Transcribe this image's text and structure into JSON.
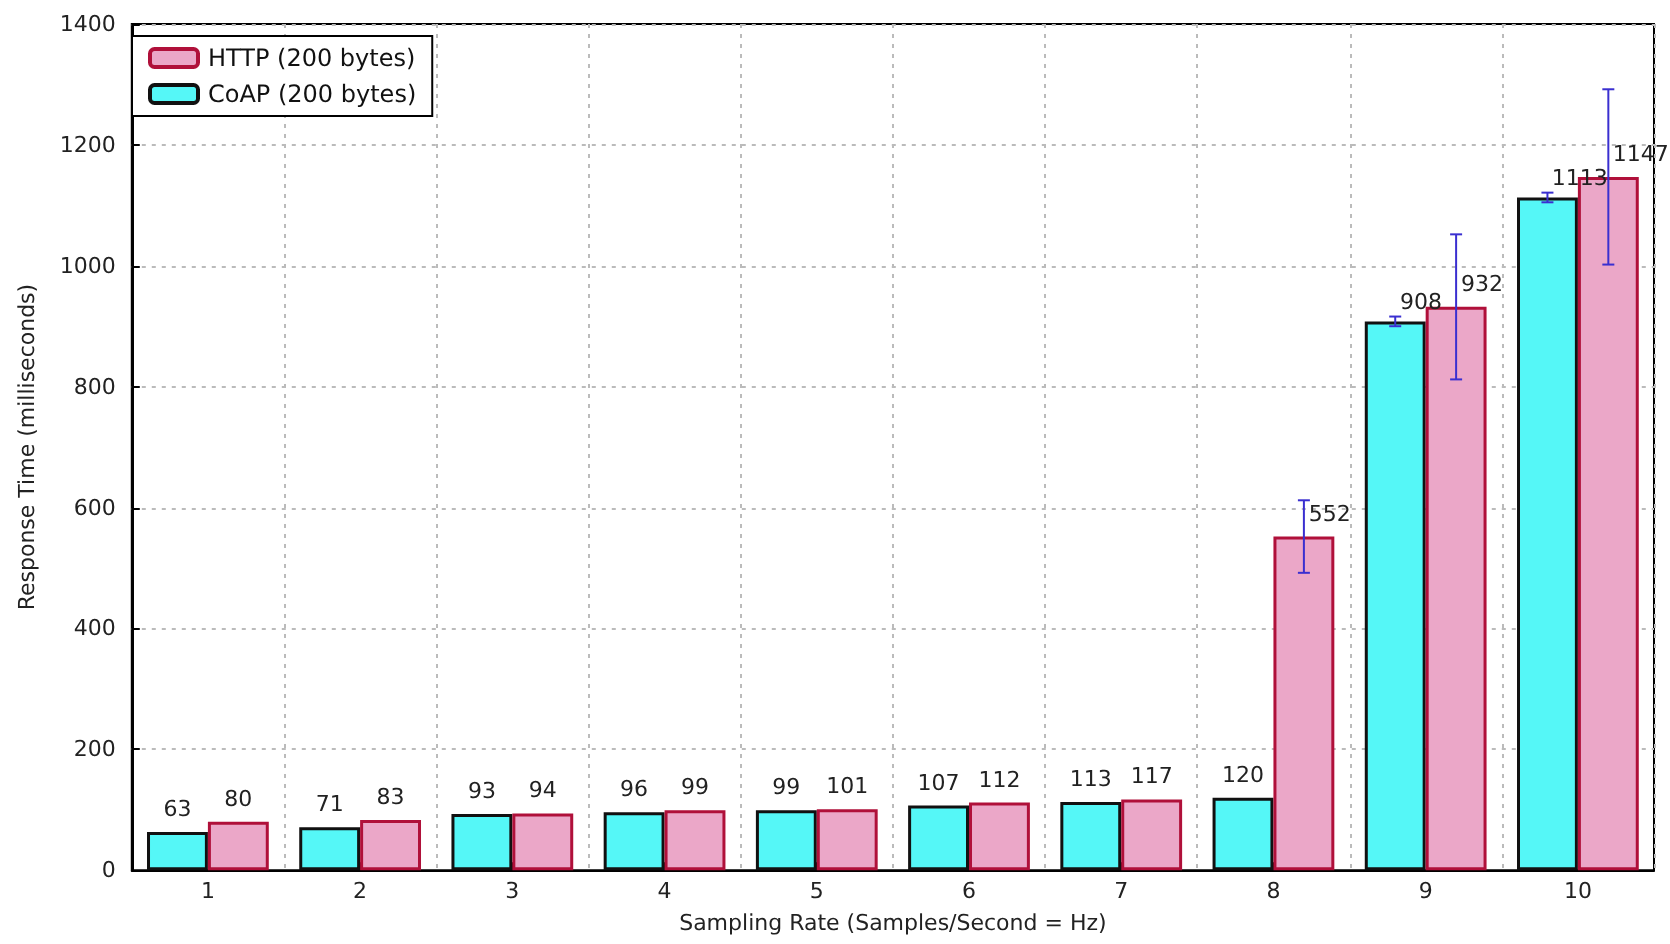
{
  "chart_data": {
    "type": "bar",
    "xlabel": "Sampling Rate (Samples/Second = Hz)",
    "ylabel": "Response Time (milliseconds)",
    "categories": [
      "1",
      "2",
      "3",
      "4",
      "5",
      "6",
      "7",
      "8",
      "9",
      "10"
    ],
    "series": [
      {
        "name": "CoAP (200 bytes)",
        "color": "#55f7f7",
        "values": [
          63,
          71,
          93,
          96,
          99,
          107,
          113,
          120,
          908,
          1113
        ],
        "errors": [
          null,
          null,
          null,
          null,
          null,
          null,
          null,
          null,
          8,
          8
        ]
      },
      {
        "name": "HTTP (200 bytes)",
        "color": "#eba7c8",
        "values": [
          80,
          83,
          94,
          99,
          101,
          112,
          117,
          552,
          932,
          1147
        ],
        "errors": [
          null,
          null,
          null,
          null,
          null,
          null,
          null,
          60,
          120,
          145
        ]
      }
    ],
    "ylim": [
      0,
      1400
    ],
    "yticks": [
      0,
      200,
      400,
      600,
      800,
      1000,
      1200,
      1400
    ],
    "grid": true,
    "legend": "top left",
    "data_labels": true
  }
}
